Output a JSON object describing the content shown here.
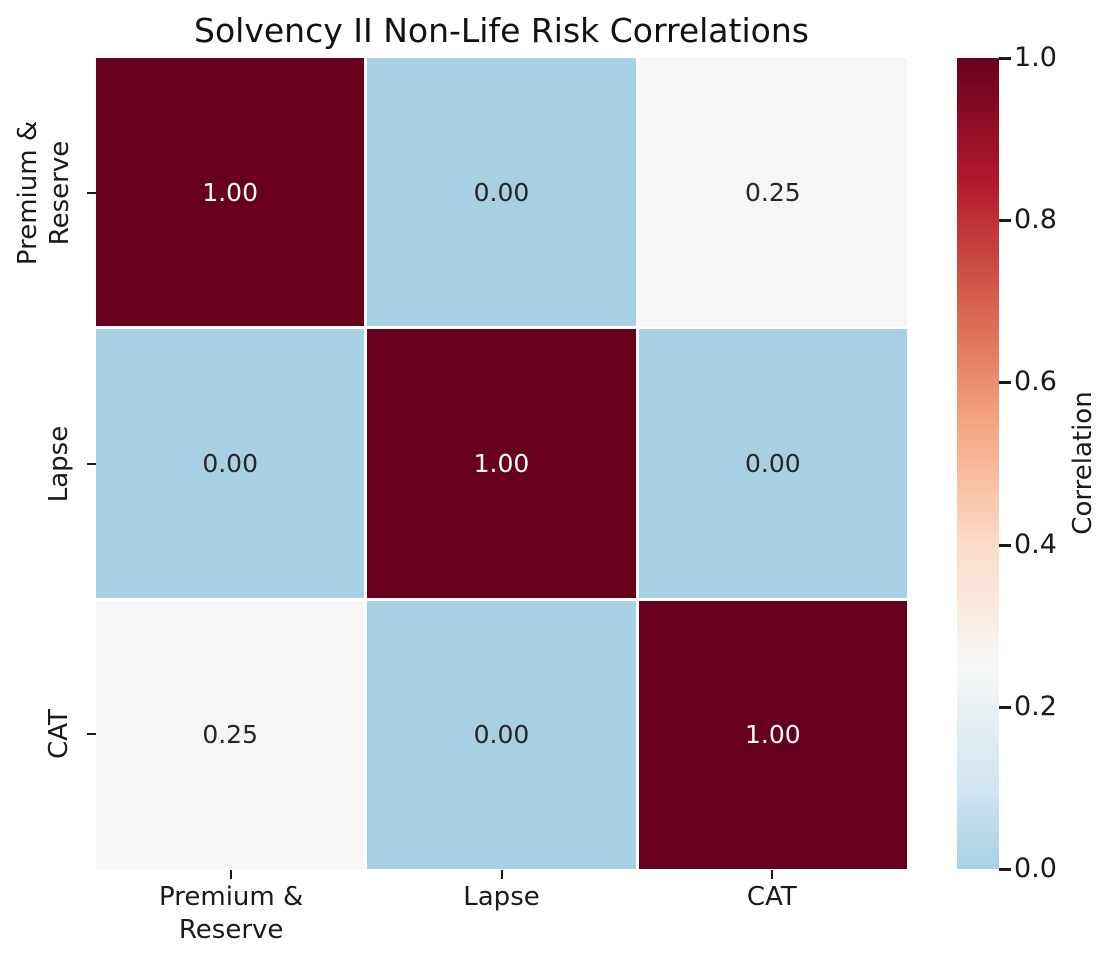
{
  "chart_data": {
    "type": "heatmap",
    "title": "Solvency II Non-Life Risk Correlations",
    "categories": [
      "Premium &\nReserve",
      "Lapse",
      "CAT"
    ],
    "matrix": [
      [
        1.0,
        0.0,
        0.25
      ],
      [
        0.0,
        1.0,
        0.0
      ],
      [
        0.25,
        0.0,
        1.0
      ]
    ],
    "cell_labels": [
      [
        "1.00",
        "0.00",
        "0.25"
      ],
      [
        "0.00",
        "1.00",
        "0.00"
      ],
      [
        "0.25",
        "0.00",
        "1.00"
      ]
    ],
    "value_range": [
      0.0,
      1.0
    ],
    "grid": false,
    "legend_position": "right-colorbar",
    "colorbar": {
      "label": "Correlation",
      "tick_values": [
        1.0,
        0.8,
        0.6,
        0.4,
        0.2,
        0.0
      ],
      "tick_labels": [
        "1.0",
        "0.8",
        "0.6",
        "0.4",
        "0.2",
        "0.0"
      ]
    },
    "colors": {
      "high_color": "#67001f",
      "low_color": "#a7d0e4",
      "mid_color": "#f7f7f7",
      "annotation_dark": "#262626",
      "annotation_light": "#ffffff",
      "gradient_stops": [
        {
          "value": 0.0,
          "color": "#a7d0e4"
        },
        {
          "value": 0.1,
          "color": "#d1e5f0"
        },
        {
          "value": 0.25,
          "color": "#f7f7f7"
        },
        {
          "value": 0.4,
          "color": "#fddbc7"
        },
        {
          "value": 0.55,
          "color": "#f4a582"
        },
        {
          "value": 0.7,
          "color": "#d6604d"
        },
        {
          "value": 0.85,
          "color": "#b2182b"
        },
        {
          "value": 1.0,
          "color": "#67001f"
        }
      ]
    },
    "cell_colors": [
      [
        "#67001f",
        "#a7d0e4",
        "#f6f6f6"
      ],
      [
        "#a7d0e4",
        "#67001f",
        "#a7d0e4"
      ],
      [
        "#f6f6f6",
        "#a7d0e4",
        "#67001f"
      ]
    ],
    "cell_text_colors": [
      [
        "#ffffff",
        "#262626",
        "#262626"
      ],
      [
        "#262626",
        "#ffffff",
        "#262626"
      ],
      [
        "#262626",
        "#262626",
        "#ffffff"
      ]
    ]
  }
}
